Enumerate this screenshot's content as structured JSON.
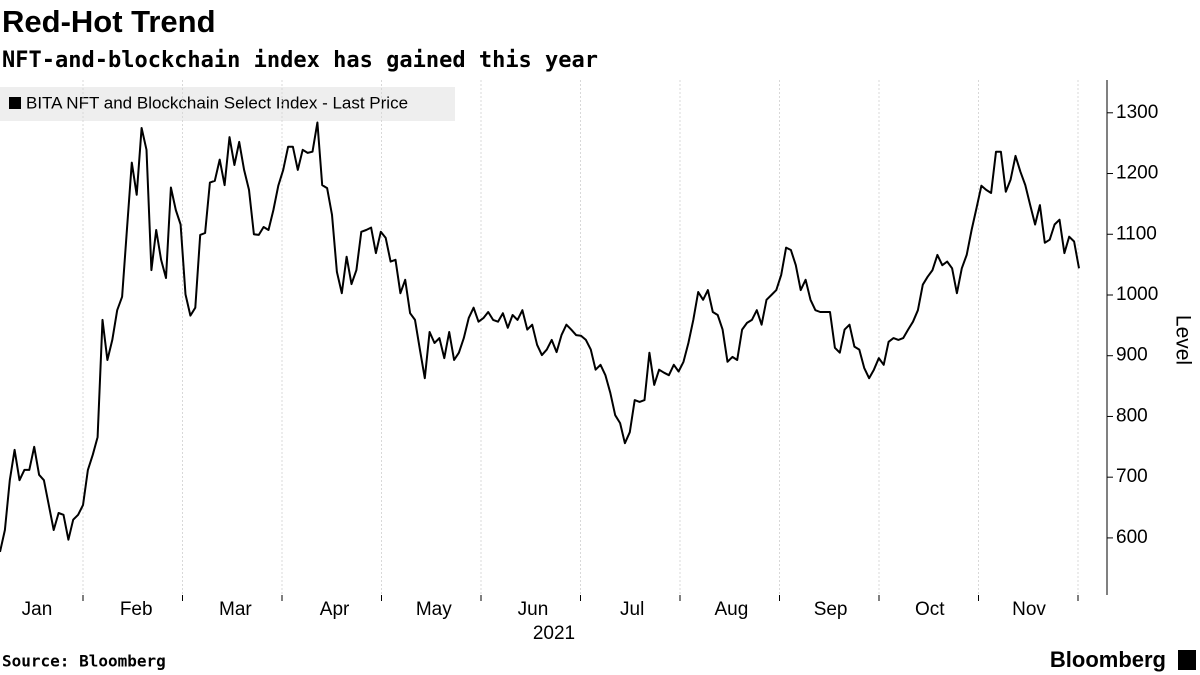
{
  "chart_data": {
    "type": "line",
    "title": "Red-Hot Trend",
    "subtitle": "NFT-and-blockchain index has gained this year",
    "source": "Source: Bloomberg",
    "brand": "Bloomberg",
    "ylabel": "Level",
    "x_labels": [
      "Jan",
      "Feb",
      "Mar",
      "Apr",
      "May",
      "Jun",
      "Jul",
      "Aug",
      "Sep",
      "Oct",
      "Nov"
    ],
    "x_sublabel": "2021",
    "ylim": [
      506,
      1354
    ],
    "yticks": [
      600,
      700,
      800,
      900,
      1000,
      1100,
      1200,
      1300
    ],
    "grid": true,
    "series": [
      {
        "name": "BITA NFT and Blockchain Select Index - Last Price",
        "color": "#000000",
        "values": [
          577,
          613,
          695,
          745,
          695,
          712,
          712,
          750,
          704,
          695,
          654,
          613,
          641,
          638,
          597,
          630,
          638,
          654,
          712,
          737,
          766,
          959,
          893,
          926,
          975,
          997,
          1107,
          1218,
          1165,
          1275,
          1239,
          1041,
          1107,
          1058,
          1028,
          1177,
          1140,
          1116,
          1001,
          966,
          979,
          1099,
          1102,
          1185,
          1188,
          1223,
          1181,
          1260,
          1214,
          1252,
          1206,
          1173,
          1100,
          1099,
          1112,
          1107,
          1140,
          1180,
          1206,
          1244,
          1244,
          1206,
          1239,
          1234,
          1236,
          1284,
          1181,
          1176,
          1132,
          1038,
          1003,
          1063,
          1018,
          1041,
          1104,
          1107,
          1111,
          1069,
          1104,
          1094,
          1055,
          1058,
          1003,
          1025,
          970,
          959,
          910,
          863,
          939,
          921,
          929,
          896,
          939,
          893,
          905,
          929,
          962,
          979,
          956,
          962,
          972,
          959,
          956,
          970,
          946,
          967,
          959,
          975,
          943,
          951,
          918,
          901,
          910,
          926,
          906,
          934,
          951,
          943,
          934,
          933,
          926,
          910,
          877,
          885,
          868,
          839,
          802,
          789,
          756,
          774,
          827,
          824,
          827,
          905,
          852,
          877,
          872,
          868,
          885,
          874,
          890,
          921,
          959,
          1005,
          992,
          1008,
          972,
          967,
          943,
          890,
          898,
          893,
          943,
          954,
          959,
          975,
          951,
          992,
          1000,
          1008,
          1033,
          1078,
          1074,
          1049,
          1008,
          1025,
          992,
          975,
          972,
          972,
          972,
          913,
          905,
          943,
          951,
          915,
          910,
          880,
          863,
          877,
          896,
          885,
          923,
          929,
          926,
          929,
          943,
          956,
          975,
          1017,
          1030,
          1041,
          1066,
          1049,
          1055,
          1044,
          1003,
          1044,
          1066,
          1107,
          1143,
          1180,
          1173,
          1168,
          1236,
          1236,
          1170,
          1190,
          1229,
          1203,
          1181,
          1148,
          1116,
          1148,
          1086,
          1091,
          1116,
          1124,
          1069,
          1096,
          1088,
          1044
        ]
      }
    ]
  }
}
